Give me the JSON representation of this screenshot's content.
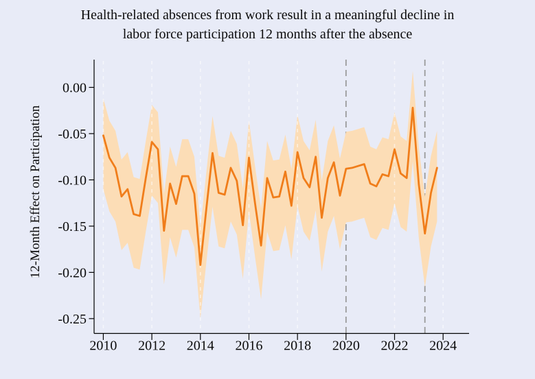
{
  "title": {
    "line1": "Health-related absences from work result in a meaningful decline in",
    "line2": "labor force participation 12 months after the absence"
  },
  "axes": {
    "y_label": "12-Month Effect on Participation",
    "y_ticks": [
      "0.00",
      "-0.05",
      "-0.10",
      "-0.15",
      "-0.20",
      "-0.25"
    ],
    "x_ticks": [
      "2010",
      "2012",
      "2014",
      "2016",
      "2018",
      "2020",
      "2022",
      "2024"
    ]
  },
  "colors": {
    "background": "#e8ebf7",
    "band": "#fcddb6",
    "line": "#f07d1a",
    "gridline": "rgba(255,255,255,0.55)",
    "event_line": "#9a9a9a",
    "axis": "#000000",
    "text": "#0b0b0b"
  },
  "chart_data": {
    "type": "line",
    "title": "Health-related absences from work result in a meaningful decline in labor force participation 12 months after the absence",
    "xlabel": "",
    "ylabel": "12-Month Effect on Participation",
    "xlim": [
      2009.62,
      2025.07
    ],
    "ylim": [
      -0.266,
      0.03
    ],
    "x_tick_values": [
      2010,
      2012,
      2014,
      2016,
      2018,
      2020,
      2022,
      2024
    ],
    "y_tick_values": [
      0.0,
      -0.05,
      -0.1,
      -0.15,
      -0.2,
      -0.25
    ],
    "x_gridline_values": [
      2010,
      2012,
      2014,
      2016,
      2018,
      2022,
      2024
    ],
    "event_vlines": [
      2020.0,
      2023.25
    ],
    "grid": "vertical-dashed",
    "legend": "none",
    "x": [
      2010.0,
      2010.25,
      2010.5,
      2010.75,
      2011.0,
      2011.25,
      2011.5,
      2011.75,
      2012.0,
      2012.25,
      2012.5,
      2012.75,
      2013.0,
      2013.25,
      2013.5,
      2013.75,
      2014.0,
      2014.25,
      2014.5,
      2014.75,
      2015.0,
      2015.25,
      2015.5,
      2015.75,
      2016.0,
      2016.25,
      2016.5,
      2016.75,
      2017.0,
      2017.25,
      2017.5,
      2017.75,
      2018.0,
      2018.25,
      2018.5,
      2018.75,
      2019.0,
      2019.25,
      2019.5,
      2019.75,
      2020.0,
      2020.25,
      2020.5,
      2020.75,
      2021.0,
      2021.25,
      2021.5,
      2021.75,
      2022.0,
      2022.25,
      2022.5,
      2022.75,
      2023.0,
      2023.25,
      2023.5,
      2023.75
    ],
    "values": [
      -0.052,
      -0.076,
      -0.087,
      -0.118,
      -0.11,
      -0.137,
      -0.139,
      -0.098,
      -0.059,
      -0.067,
      -0.155,
      -0.104,
      -0.126,
      -0.096,
      -0.096,
      -0.115,
      -0.192,
      -0.13,
      -0.071,
      -0.114,
      -0.116,
      -0.087,
      -0.101,
      -0.149,
      -0.076,
      -0.125,
      -0.171,
      -0.098,
      -0.119,
      -0.118,
      -0.091,
      -0.128,
      -0.07,
      -0.098,
      -0.108,
      -0.075,
      -0.141,
      -0.098,
      -0.081,
      -0.117,
      -0.088,
      -0.087,
      -0.085,
      -0.083,
      -0.104,
      -0.107,
      -0.094,
      -0.096,
      -0.067,
      -0.093,
      -0.098,
      -0.022,
      -0.105,
      -0.158,
      -0.114,
      -0.087
    ],
    "band_upper": [
      -0.012,
      -0.036,
      -0.047,
      -0.078,
      -0.07,
      -0.097,
      -0.099,
      -0.058,
      -0.019,
      -0.027,
      -0.115,
      -0.064,
      -0.086,
      -0.056,
      -0.056,
      -0.075,
      -0.152,
      -0.09,
      -0.031,
      -0.074,
      -0.076,
      -0.047,
      -0.061,
      -0.109,
      -0.036,
      -0.085,
      -0.131,
      -0.058,
      -0.079,
      -0.078,
      -0.051,
      -0.088,
      -0.03,
      -0.058,
      -0.068,
      -0.035,
      -0.101,
      -0.058,
      -0.041,
      -0.077,
      -0.048,
      -0.047,
      -0.045,
      -0.043,
      -0.064,
      -0.067,
      -0.054,
      -0.056,
      -0.027,
      -0.053,
      -0.058,
      0.018,
      -0.065,
      -0.118,
      -0.074,
      -0.047
    ],
    "band_lower": [
      -0.11,
      -0.134,
      -0.145,
      -0.176,
      -0.168,
      -0.195,
      -0.197,
      -0.156,
      -0.117,
      -0.125,
      -0.213,
      -0.162,
      -0.184,
      -0.154,
      -0.154,
      -0.173,
      -0.25,
      -0.188,
      -0.129,
      -0.172,
      -0.174,
      -0.145,
      -0.159,
      -0.207,
      -0.134,
      -0.183,
      -0.229,
      -0.156,
      -0.177,
      -0.176,
      -0.149,
      -0.186,
      -0.128,
      -0.156,
      -0.166,
      -0.133,
      -0.199,
      -0.156,
      -0.139,
      -0.175,
      -0.146,
      -0.145,
      -0.143,
      -0.141,
      -0.162,
      -0.165,
      -0.152,
      -0.154,
      -0.125,
      -0.151,
      -0.156,
      -0.08,
      -0.163,
      -0.216,
      -0.172,
      -0.145
    ]
  }
}
